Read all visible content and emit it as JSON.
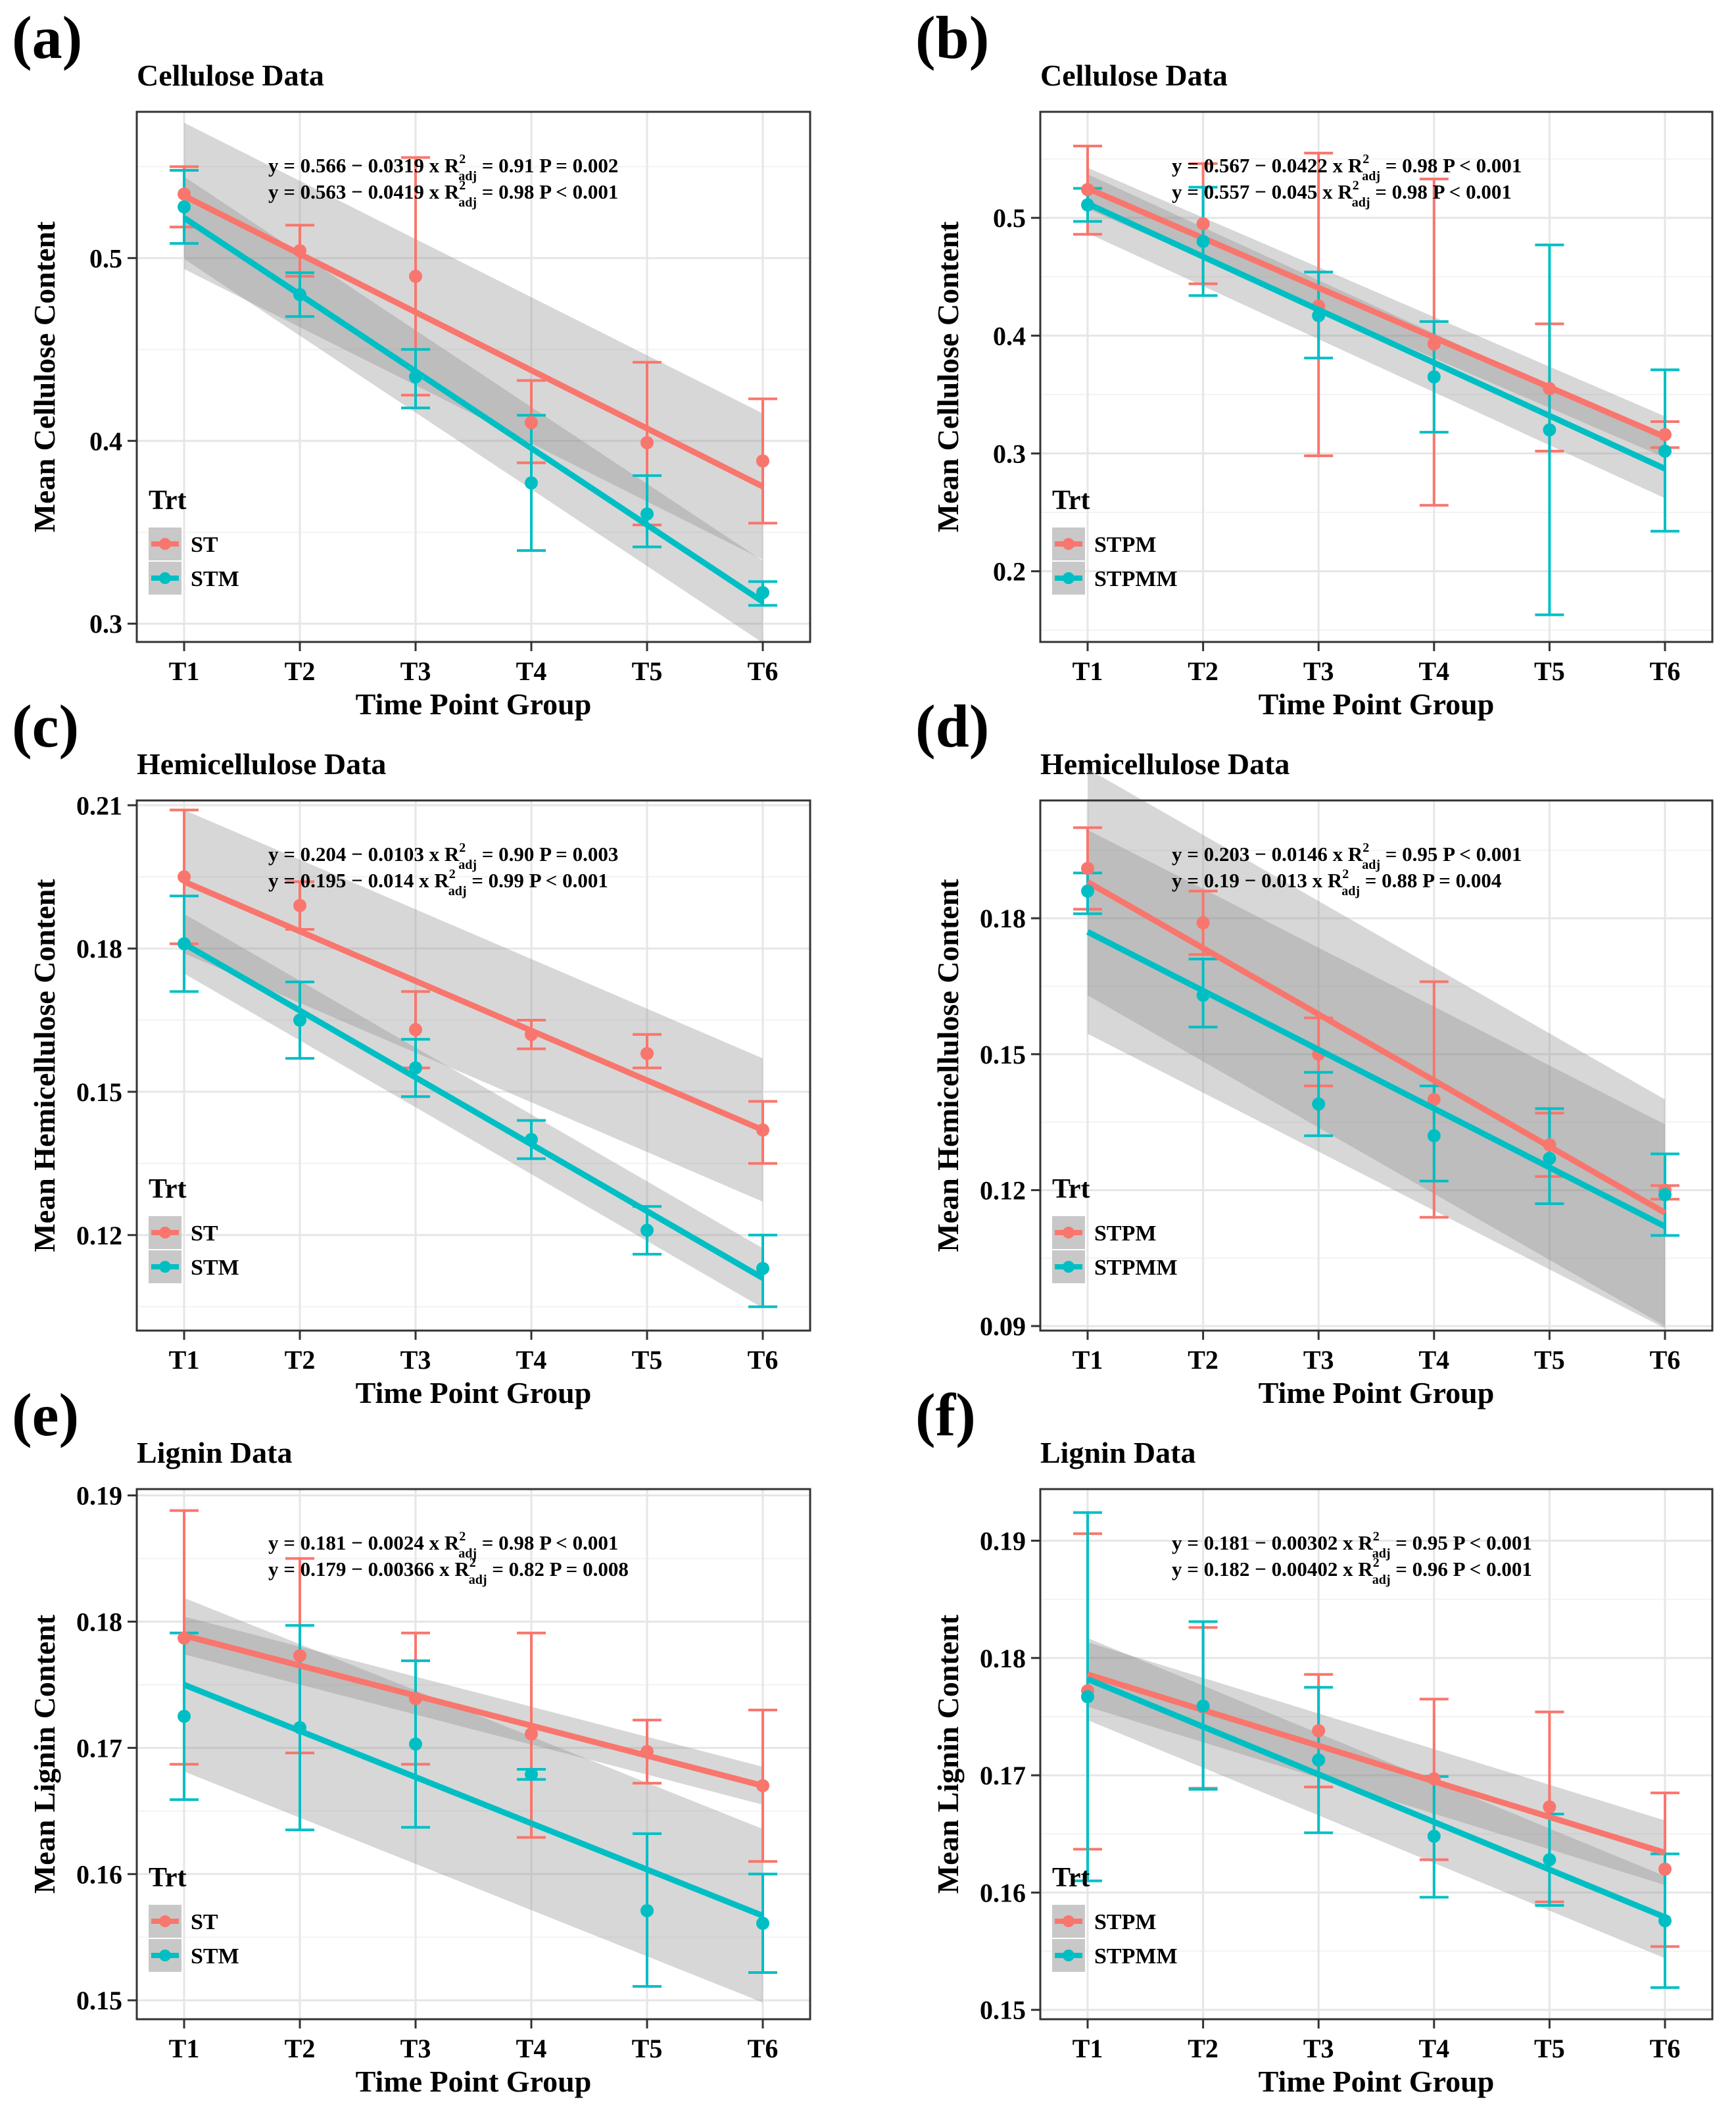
{
  "chart_data": [
    {
      "type": "line",
      "panel": "(a)",
      "title": "Cellulose Data",
      "xlabel": "Time Point Group",
      "ylabel": "Mean Cellulose Content",
      "categories": [
        "T1",
        "T2",
        "T3",
        "T4",
        "T5",
        "T6"
      ],
      "ylim": [
        0.29,
        0.58
      ],
      "yticks": [
        0.3,
        0.4,
        0.5
      ],
      "ytick_labels": [
        "0.3",
        "0.4",
        "0.5"
      ],
      "legend_title": "Trt",
      "series": [
        {
          "name": "ST",
          "color": "#F8766D",
          "values": [
            0.535,
            0.504,
            0.49,
            0.41,
            0.399,
            0.389
          ],
          "err_low": [
            0.517,
            0.49,
            0.425,
            0.388,
            0.354,
            0.355
          ],
          "err_high": [
            0.55,
            0.518,
            0.555,
            0.433,
            0.443,
            0.423
          ],
          "fit": [
            0.534,
            0.375
          ],
          "band": 0.032
        },
        {
          "name": "STM",
          "color": "#00BFC4",
          "values": [
            0.528,
            0.48,
            0.435,
            0.377,
            0.36,
            0.317
          ],
          "err_low": [
            0.508,
            0.468,
            0.418,
            0.34,
            0.342,
            0.31
          ],
          "err_high": [
            0.548,
            0.492,
            0.45,
            0.414,
            0.381,
            0.323
          ],
          "fit": [
            0.522,
            0.312
          ],
          "band": 0.018
        }
      ],
      "equations": [
        {
          "pre": "y = 0.566 − 0.0319 x  R",
          "sup": "2",
          "sub": "adj",
          "post": " = 0.91  P = 0.002"
        },
        {
          "pre": "y = 0.563 − 0.0419 x  R",
          "sup": "2",
          "sub": "adj",
          "post": " = 0.98  P < 0.001"
        }
      ]
    },
    {
      "type": "line",
      "panel": "(b)",
      "title": "Cellulose Data",
      "xlabel": "Time Point Group",
      "ylabel": "Mean Cellulose Content",
      "categories": [
        "T1",
        "T2",
        "T3",
        "T4",
        "T5",
        "T6"
      ],
      "ylim": [
        0.14,
        0.59
      ],
      "yticks": [
        0.2,
        0.3,
        0.4,
        0.5
      ],
      "ytick_labels": [
        "0.2",
        "0.3",
        "0.4",
        "0.5"
      ],
      "legend_title": "Trt",
      "series": [
        {
          "name": "STPM",
          "color": "#F8766D",
          "values": [
            0.524,
            0.495,
            0.425,
            0.393,
            0.355,
            0.316
          ],
          "err_low": [
            0.486,
            0.444,
            0.298,
            0.256,
            0.302,
            0.305
          ],
          "err_high": [
            0.561,
            0.546,
            0.555,
            0.533,
            0.41,
            0.327
          ],
          "fit": [
            0.525,
            0.314
          ],
          "band": 0.014
        },
        {
          "name": "STPMM",
          "color": "#00BFC4",
          "values": [
            0.511,
            0.48,
            0.417,
            0.365,
            0.32,
            0.302
          ],
          "err_low": [
            0.497,
            0.434,
            0.381,
            0.318,
            0.163,
            0.234
          ],
          "err_high": [
            0.525,
            0.526,
            0.454,
            0.412,
            0.477,
            0.371
          ],
          "fit": [
            0.512,
            0.287
          ],
          "band": 0.02
        }
      ],
      "equations": [
        {
          "pre": "y = 0.567 − 0.0422 x  R",
          "sup": "2",
          "sub": "adj",
          "post": " = 0.98  P < 0.001"
        },
        {
          "pre": "y = 0.557 − 0.045 x  R",
          "sup": "2",
          "sub": "adj",
          "post": " = 0.98  P < 0.001"
        }
      ]
    },
    {
      "type": "line",
      "panel": "(c)",
      "title": "Hemicellulose Data",
      "xlabel": "Time Point Group",
      "ylabel": "Mean Hemicellulose Content",
      "categories": [
        "T1",
        "T2",
        "T3",
        "T4",
        "T5",
        "T6"
      ],
      "ylim": [
        0.1,
        0.211
      ],
      "yticks": [
        0.12,
        0.15,
        0.18,
        0.21
      ],
      "ytick_labels": [
        "0.12",
        "0.15",
        "0.18",
        "0.21"
      ],
      "legend_title": "Trt",
      "series": [
        {
          "name": "ST",
          "color": "#F8766D",
          "values": [
            0.195,
            0.189,
            0.163,
            0.162,
            0.158,
            0.142
          ],
          "err_low": [
            0.181,
            0.184,
            0.155,
            0.159,
            0.155,
            0.135
          ],
          "err_high": [
            0.209,
            0.194,
            0.171,
            0.165,
            0.162,
            0.148
          ],
          "fit": [
            0.194,
            0.142
          ],
          "band": 0.012
        },
        {
          "name": "STM",
          "color": "#00BFC4",
          "values": [
            0.181,
            0.165,
            0.155,
            0.14,
            0.121,
            0.113
          ],
          "err_low": [
            0.171,
            0.157,
            0.149,
            0.136,
            0.116,
            0.105
          ],
          "err_high": [
            0.191,
            0.173,
            0.161,
            0.144,
            0.126,
            0.12
          ],
          "fit": [
            0.181,
            0.111
          ],
          "band": 0.005
        }
      ],
      "equations": [
        {
          "pre": "y = 0.204 − 0.0103 x  R",
          "sup": "2",
          "sub": "adj",
          "post": " = 0.90  P = 0.003"
        },
        {
          "pre": "y = 0.195 − 0.014 x  R",
          "sup": "2",
          "sub": "adj",
          "post": " = 0.99  P < 0.001"
        }
      ]
    },
    {
      "type": "line",
      "panel": "(d)",
      "title": "Hemicellulose Data",
      "xlabel": "Time Point Group",
      "ylabel": "Mean Hemicellulose Content",
      "categories": [
        "T1",
        "T2",
        "T3",
        "T4",
        "T5",
        "T6"
      ],
      "ylim": [
        0.089,
        0.206
      ],
      "yticks": [
        0.09,
        0.12,
        0.15,
        0.18
      ],
      "ytick_labels": [
        "0.09",
        "0.12",
        "0.15",
        "0.18"
      ],
      "legend_title": "Trt",
      "series": [
        {
          "name": "STPM",
          "color": "#F8766D",
          "values": [
            0.191,
            0.179,
            0.15,
            0.14,
            0.13,
            0.12
          ],
          "err_low": [
            0.182,
            0.172,
            0.143,
            0.114,
            0.123,
            0.118
          ],
          "err_high": [
            0.2,
            0.186,
            0.158,
            0.166,
            0.137,
            0.121
          ],
          "fit": [
            0.188,
            0.115
          ],
          "band": 0.02
        },
        {
          "name": "STPMM",
          "color": "#00BFC4",
          "values": [
            0.186,
            0.163,
            0.139,
            0.132,
            0.127,
            0.119
          ],
          "err_low": [
            0.181,
            0.156,
            0.132,
            0.122,
            0.117,
            0.11
          ],
          "err_high": [
            0.19,
            0.171,
            0.146,
            0.143,
            0.138,
            0.128
          ],
          "fit": [
            0.177,
            0.112
          ],
          "band": 0.018
        }
      ],
      "equations": [
        {
          "pre": "y = 0.203 − 0.0146 x  R",
          "sup": "2",
          "sub": "adj",
          "post": " = 0.95  P < 0.001"
        },
        {
          "pre": "y = 0.19 − 0.013 x  R",
          "sup": "2",
          "sub": "adj",
          "post": " = 0.88  P = 0.004"
        }
      ]
    },
    {
      "type": "line",
      "panel": "(e)",
      "title": "Lignin Data",
      "xlabel": "Time Point Group",
      "ylabel": "Mean Lignin Content",
      "categories": [
        "T1",
        "T2",
        "T3",
        "T4",
        "T5",
        "T6"
      ],
      "ylim": [
        0.1485,
        0.1905
      ],
      "yticks": [
        0.15,
        0.16,
        0.17,
        0.18,
        0.19
      ],
      "ytick_labels": [
        "0.15",
        "0.16",
        "0.17",
        "0.18",
        "0.19"
      ],
      "legend_title": "Trt",
      "series": [
        {
          "name": "ST",
          "color": "#F8766D",
          "values": [
            0.1787,
            0.1773,
            0.1739,
            0.1711,
            0.1697,
            0.167
          ],
          "err_low": [
            0.1687,
            0.1696,
            0.1687,
            0.1629,
            0.1672,
            0.161
          ],
          "err_high": [
            0.1888,
            0.185,
            0.1791,
            0.1791,
            0.1722,
            0.173
          ],
          "fit": [
            0.1789,
            0.167
          ],
          "band": 0.0012
        },
        {
          "name": "STM",
          "color": "#00BFC4",
          "values": [
            0.1725,
            0.1716,
            0.1703,
            0.1679,
            0.1571,
            0.1561
          ],
          "err_low": [
            0.1659,
            0.1635,
            0.1637,
            0.1675,
            0.1511,
            0.1522
          ],
          "err_high": [
            0.1791,
            0.1797,
            0.1769,
            0.1683,
            0.1632,
            0.16
          ],
          "fit": [
            0.175,
            0.1567
          ],
          "band": 0.0055
        }
      ],
      "equations": [
        {
          "pre": "y = 0.181 − 0.0024 x  R",
          "sup": "2",
          "sub": "adj",
          "post": " = 0.98  P < 0.001"
        },
        {
          "pre": "y = 0.179 − 0.00366 x  R",
          "sup": "2",
          "sub": "adj",
          "post": " = 0.82  P = 0.008"
        }
      ]
    },
    {
      "type": "line",
      "panel": "(f)",
      "title": "Lignin Data",
      "xlabel": "Time Point Group",
      "ylabel": "Mean Lignin Content",
      "categories": [
        "T1",
        "T2",
        "T3",
        "T4",
        "T5",
        "T6"
      ],
      "ylim": [
        0.1492,
        0.1944
      ],
      "yticks": [
        0.15,
        0.16,
        0.17,
        0.18,
        0.19
      ],
      "ytick_labels": [
        "0.15",
        "0.16",
        "0.17",
        "0.18",
        "0.19"
      ],
      "legend_title": "Trt",
      "series": [
        {
          "name": "STPM",
          "color": "#F8766D",
          "values": [
            0.1772,
            0.1758,
            0.1738,
            0.1697,
            0.1673,
            0.162
          ],
          "err_low": [
            0.1637,
            0.1689,
            0.169,
            0.1628,
            0.1592,
            0.1554
          ],
          "err_high": [
            0.1906,
            0.1826,
            0.1786,
            0.1765,
            0.1754,
            0.1685
          ],
          "fit": [
            0.1786,
            0.1634
          ],
          "band": 0.0022
        },
        {
          "name": "STPMM",
          "color": "#00BFC4",
          "values": [
            0.1767,
            0.1759,
            0.1713,
            0.1648,
            0.1628,
            0.1576
          ],
          "err_low": [
            0.161,
            0.1688,
            0.1651,
            0.1596,
            0.1589,
            0.1519
          ],
          "err_high": [
            0.1924,
            0.1831,
            0.1775,
            0.1699,
            0.1667,
            0.1633
          ],
          "fit": [
            0.1782,
            0.1579
          ],
          "band": 0.0028
        }
      ],
      "equations": [
        {
          "pre": "y = 0.181 − 0.00302 x  R",
          "sup": "2",
          "sub": "adj",
          "post": " = 0.95  P < 0.001"
        },
        {
          "pre": "y = 0.182 − 0.00402 x  R",
          "sup": "2",
          "sub": "adj",
          "post": " = 0.96  P < 0.001"
        }
      ]
    }
  ]
}
